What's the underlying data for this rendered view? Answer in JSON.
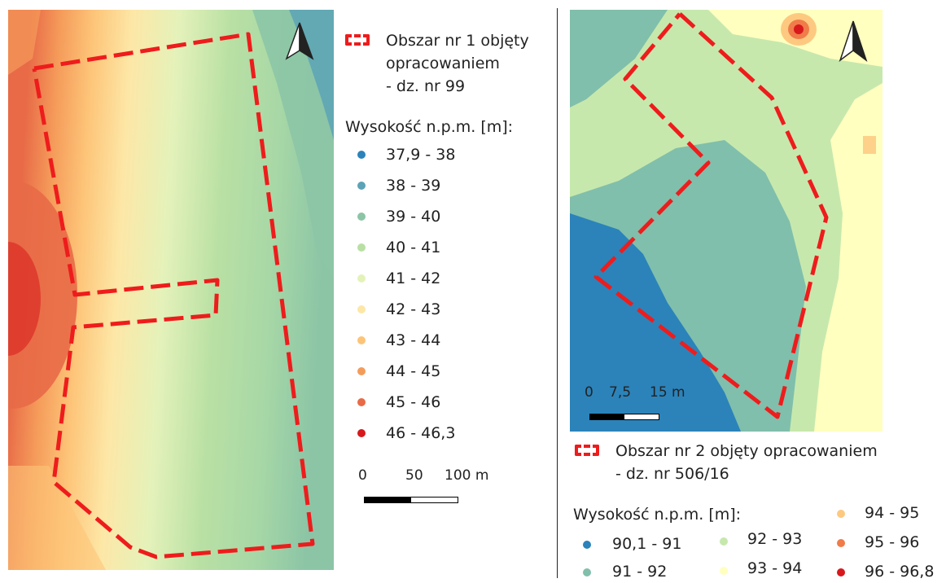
{
  "map1": {
    "legend_title": "Wysokość n.p.m. [m]:",
    "area_label_line1": "Obszar nr 1 objęty",
    "area_label_line2": "opracowaniem",
    "area_label_line3": "- dz. nr 99",
    "classes": [
      {
        "label": "37,9 - 38",
        "color": "#2b83ba"
      },
      {
        "label": "38 - 39",
        "color": "#5ba3b6"
      },
      {
        "label": "39 - 40",
        "color": "#8cc5a6"
      },
      {
        "label": "40 - 41",
        "color": "#b9e0a4"
      },
      {
        "label": "41 - 42",
        "color": "#e4f2ba"
      },
      {
        "label": "42 - 43",
        "color": "#fde7a7"
      },
      {
        "label": "43 - 44",
        "color": "#fdc478"
      },
      {
        "label": "44 - 45",
        "color": "#f59b5a"
      },
      {
        "label": "45 - 46",
        "color": "#e86a47"
      },
      {
        "label": "46 - 46,3",
        "color": "#d7191c"
      }
    ],
    "scale": {
      "t0": "0",
      "t1": "50",
      "t2": "100 m"
    }
  },
  "map2": {
    "legend_title": "Wysokość n.p.m. [m]:",
    "area_label_line1": "Obszar nr 2 objęty opracowaniem",
    "area_label_line2": "- dz. nr 506/16",
    "classes": [
      {
        "label": "90,1 - 91",
        "color": "#2b83ba"
      },
      {
        "label": "91 - 92",
        "color": "#80bfab"
      },
      {
        "label": "92 - 93",
        "color": "#c7e8ad"
      },
      {
        "label": "93 - 94",
        "color": "#ffffbf"
      },
      {
        "label": "94 - 95",
        "color": "#fdc980"
      },
      {
        "label": "95 - 96",
        "color": "#f07c4a"
      },
      {
        "label": "96 - 96,8",
        "color": "#d7191c"
      }
    ],
    "scale": {
      "t0": "0",
      "t1": "7,5",
      "t2": "15 m"
    }
  },
  "colors": {
    "boundary": "#ee1c1c",
    "divider": "#222222"
  },
  "icons": {
    "north_arrow": "north-arrow-icon"
  }
}
